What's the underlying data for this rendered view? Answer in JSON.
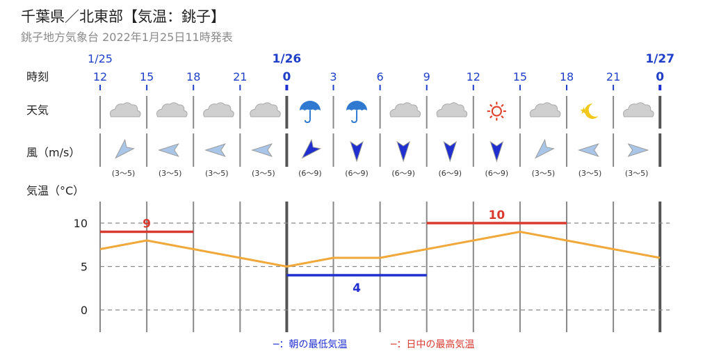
{
  "header": {
    "title": "千葉県／北東部【気温：銚子】",
    "subtitle": "銚子地方気象台 2022年1月25日11時発表"
  },
  "labels": {
    "time": "時刻",
    "weather": "天気",
    "wind": "風（m/s）",
    "temp": "気温（°C）"
  },
  "dates": [
    {
      "text": "1/25",
      "at": 0,
      "bold": false
    },
    {
      "text": "1/26",
      "at": 4,
      "bold": true
    },
    {
      "text": "1/27",
      "at": 12,
      "bold": true
    }
  ],
  "hours": [
    "12",
    "15",
    "18",
    "21",
    "0",
    "3",
    "6",
    "9",
    "12",
    "15",
    "18",
    "21",
    "0"
  ],
  "weather_icons": [
    "cloud-icon",
    "cloud-icon",
    "cloud-icon",
    "cloud-icon",
    "umbrella-icon",
    "umbrella-icon",
    "cloud-icon",
    "cloud-icon",
    "sun-icon",
    "cloud-icon",
    "moon-star-icon",
    "cloud-icon"
  ],
  "wind": [
    {
      "dir": "NE",
      "range": "(3～5)",
      "strong": false
    },
    {
      "dir": "E",
      "range": "(3～5)",
      "strong": false
    },
    {
      "dir": "E",
      "range": "(3～5)",
      "strong": false
    },
    {
      "dir": "E",
      "range": "(3～5)",
      "strong": false
    },
    {
      "dir": "NE",
      "range": "(6～9)",
      "strong": true
    },
    {
      "dir": "N",
      "range": "(6～9)",
      "strong": true
    },
    {
      "dir": "N",
      "range": "(6～9)",
      "strong": true
    },
    {
      "dir": "N",
      "range": "(6～9)",
      "strong": true
    },
    {
      "dir": "N",
      "range": "(6～9)",
      "strong": true
    },
    {
      "dir": "NE",
      "range": "(3～5)",
      "strong": false
    },
    {
      "dir": "E",
      "range": "(3～5)",
      "strong": false
    },
    {
      "dir": "W",
      "range": "(3～5)",
      "strong": false
    }
  ],
  "colors": {
    "temp_line": "#f0a83a",
    "min_line": "#1f2fd0",
    "max_line": "#d93a30",
    "axis_text": "#1f3fc8",
    "wind_weak": "#a9c6e8",
    "wind_strong": "#1f2fd0"
  },
  "chart_data": {
    "type": "line",
    "x": [
      "12",
      "15",
      "18",
      "21",
      "0",
      "3",
      "6",
      "9",
      "12",
      "15",
      "18",
      "21",
      "0"
    ],
    "series": [
      {
        "values": [
          7,
          8,
          7,
          6,
          5,
          6,
          6,
          7,
          8,
          9,
          8,
          7,
          6
        ]
      }
    ],
    "min_temp": {
      "value": 4,
      "label": "4",
      "from": 4,
      "to": 7
    },
    "max_temps": [
      {
        "value": 9,
        "label": "9",
        "from": 0,
        "to": 2
      },
      {
        "value": 10,
        "label": "10",
        "from": 7,
        "to": 10
      }
    ],
    "ylim": [
      -2,
      12
    ],
    "yticks": [
      "10",
      "5",
      "0"
    ],
    "ytick_values": [
      10,
      5,
      0
    ],
    "grid": true,
    "legend": [
      {
        "text": "─：朝の最低気温",
        "color": "#1f2fd0"
      },
      {
        "text": "─：日中の最高気温",
        "color": "#d93a30"
      }
    ],
    "legend_position": "bottom-center"
  }
}
